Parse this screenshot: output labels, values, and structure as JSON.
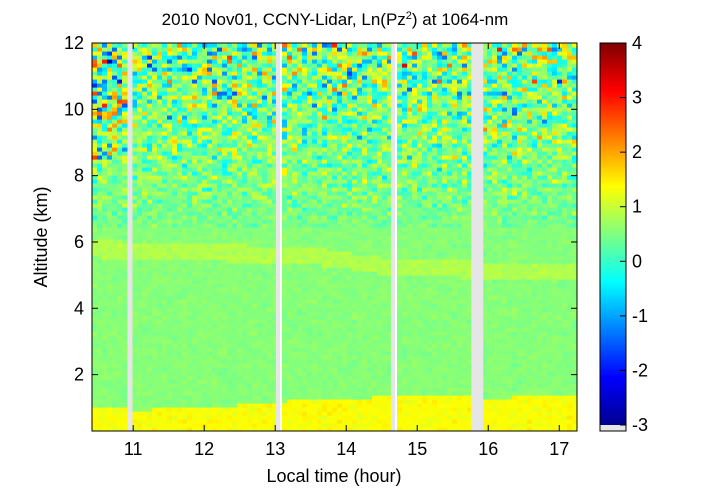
{
  "chart_data": {
    "type": "heatmap",
    "title": "2010 Nov01, CCNY-Lidar, Ln(Pz",
    "title_sup": "2",
    "title_suffix": ") at 1064-nm",
    "xlabel": "Local time (hour)",
    "ylabel": "Altitude (km)",
    "xlim": [
      10.42,
      17.25
    ],
    "ylim": [
      0.3,
      12.0
    ],
    "x_ticks": [
      11,
      12,
      13,
      14,
      15,
      16,
      17
    ],
    "y_ticks": [
      2,
      4,
      6,
      8,
      10,
      12
    ],
    "colorbar": {
      "range": [
        -3,
        4
      ],
      "ticks": [
        4,
        3,
        2,
        1,
        0,
        -1,
        -2,
        -3
      ],
      "colormap": "jet"
    },
    "data_gaps_hours": [
      [
        10.92,
        10.99
      ],
      [
        13.01,
        13.07
      ],
      [
        14.63,
        14.69
      ],
      [
        15.76,
        15.93
      ]
    ],
    "features": {
      "boundary_layer_top_km": [
        {
          "x": 10.5,
          "y": 1.05
        },
        {
          "x": 11.0,
          "y": 0.95
        },
        {
          "x": 12.0,
          "y": 1.0
        },
        {
          "x": 13.1,
          "y": 1.2
        },
        {
          "x": 14.0,
          "y": 1.3
        },
        {
          "x": 14.7,
          "y": 1.35
        },
        {
          "x": 15.7,
          "y": 1.35
        },
        {
          "x": 16.0,
          "y": 1.3
        },
        {
          "x": 17.2,
          "y": 1.4
        }
      ],
      "aerosol_layer_km": [
        {
          "x": 10.5,
          "y": 5.8
        },
        {
          "x": 12.0,
          "y": 5.7
        },
        {
          "x": 13.5,
          "y": 5.6
        },
        {
          "x": 14.5,
          "y": 5.3
        },
        {
          "x": 15.5,
          "y": 5.2
        },
        {
          "x": 17.2,
          "y": 5.1
        }
      ]
    }
  }
}
